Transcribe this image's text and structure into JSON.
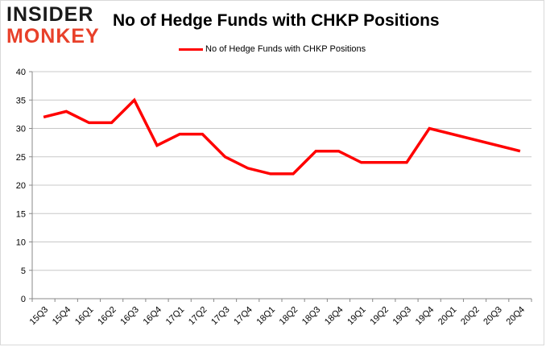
{
  "logo": {
    "line1": "INSIDER",
    "line2": "MONKEY"
  },
  "chart_data": {
    "type": "line",
    "title": "No of Hedge Funds with CHKP Positions",
    "xlabel": "",
    "ylabel": "",
    "categories": [
      "15Q3",
      "15Q4",
      "16Q1",
      "16Q2",
      "16Q3",
      "16Q4",
      "17Q1",
      "17Q2",
      "17Q3",
      "17Q4",
      "18Q1",
      "18Q2",
      "18Q3",
      "18Q4",
      "19Q1",
      "19Q2",
      "19Q3",
      "19Q4",
      "20Q1",
      "20Q2",
      "20Q3",
      "20Q4"
    ],
    "series": [
      {
        "name": "No of Hedge Funds with CHKP Positions",
        "color": "#ff0000",
        "values": [
          32,
          33,
          31,
          31,
          35,
          27,
          29,
          29,
          25,
          23,
          22,
          22,
          26,
          26,
          24,
          24,
          24,
          30,
          null,
          null,
          null,
          26
        ]
      }
    ],
    "ylim": [
      0,
      40
    ],
    "yticks": [
      0,
      5,
      10,
      15,
      20,
      25,
      30,
      35,
      40
    ],
    "grid": true,
    "legend": "top-center"
  }
}
